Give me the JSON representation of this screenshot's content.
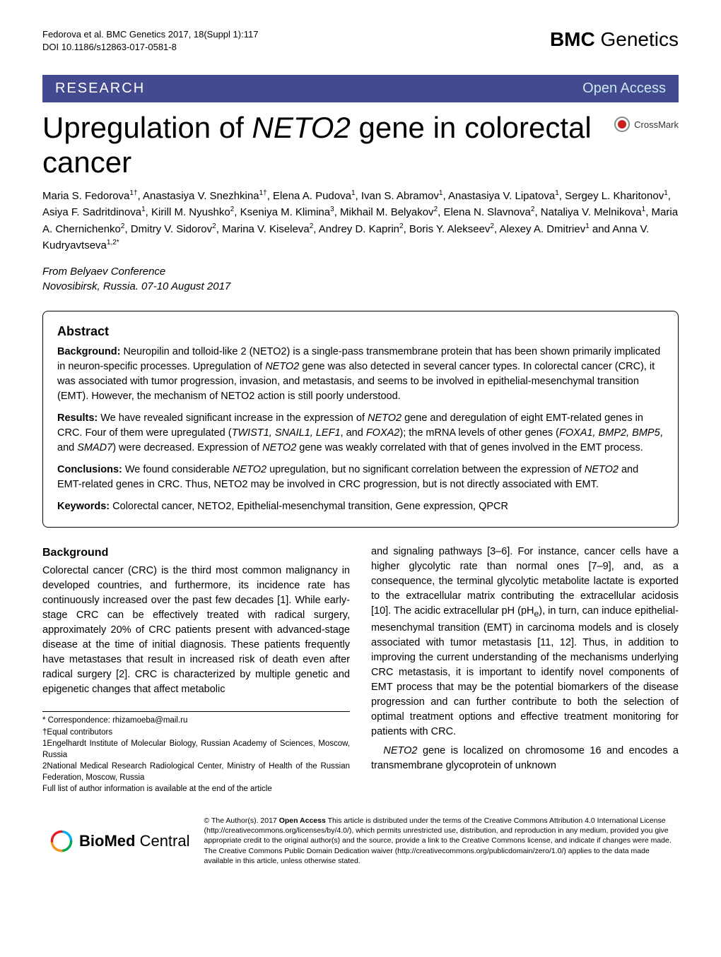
{
  "header": {
    "citation_line1": "Fedorova et al. BMC Genetics 2017, 18(Suppl 1):117",
    "citation_line2": "DOI 10.1186/s12863-017-0581-8",
    "journal_bold": "BMC",
    "journal_rest": " Genetics"
  },
  "banner": {
    "left": "RESEARCH",
    "right": "Open Access"
  },
  "title": {
    "pre": "Upregulation of ",
    "gene": "NETO2",
    "post": " gene in colorectal cancer"
  },
  "crossmark_label": "CrossMark",
  "authors_html": "Maria S. Fedorova<sup>1†</sup>, Anastasiya V. Snezhkina<sup>1†</sup>, Elena A. Pudova<sup>1</sup>, Ivan S. Abramov<sup>1</sup>, Anastasiya V. Lipatova<sup>1</sup>, Sergey L. Kharitonov<sup>1</sup>, Asiya F. Sadritdinova<sup>1</sup>, Kirill M. Nyushko<sup>2</sup>, Kseniya M. Klimina<sup>3</sup>, Mikhail M. Belyakov<sup>2</sup>, Elena N. Slavnova<sup>2</sup>, Nataliya V. Melnikova<sup>1</sup>, Maria A. Chernichenko<sup>2</sup>, Dmitry V. Sidorov<sup>2</sup>, Marina V. Kiseleva<sup>2</sup>, Andrey D. Kaprin<sup>2</sup>, Boris Y. Alekseev<sup>2</sup>, Alexey A. Dmitriev<sup>1</sup> and Anna V. Kudryavtseva<sup>1,2*</sup>",
  "conference": {
    "from": "From",
    "name": "Belyaev Conference",
    "location": "Novosibirsk, Russia. 07-10 August 2017"
  },
  "abstract": {
    "heading": "Abstract",
    "sections": [
      {
        "label": "Background:",
        "text": " Neuropilin and tolloid-like 2 (NETO2) is a single-pass transmembrane protein that has been shown primarily implicated in neuron-specific processes. Upregulation of <em>NETO2</em> gene was also detected in several cancer types. In colorectal cancer (CRC), it was associated with tumor progression, invasion, and metastasis, and seems to be involved in epithelial-mesenchymal transition (EMT). However, the mechanism of NETO2 action is still poorly understood."
      },
      {
        "label": "Results:",
        "text": " We have revealed significant increase in the expression of <em>NETO2</em> gene and deregulation of eight EMT-related genes in CRC. Four of them were upregulated (<em>TWIST1, SNAIL1, LEF1</em>, and <em>FOXA2</em>); the mRNA levels of other genes (<em>FOXA1, BMP2, BMP5</em>, and <em>SMAD7</em>) were decreased. Expression of <em>NETO2</em> gene was weakly correlated with that of genes involved in the EMT process."
      },
      {
        "label": "Conclusions:",
        "text": " We found considerable <em>NETO2</em> upregulation, but no significant correlation between the expression of <em>NETO2</em> and EMT-related genes in CRC. Thus, NETO2 may be involved in CRC progression, but is not directly associated with EMT."
      },
      {
        "label": "Keywords:",
        "text": " Colorectal cancer, NETO2, Epithelial-mesenchymal transition, Gene expression, QPCR"
      }
    ]
  },
  "body": {
    "background_heading": "Background",
    "left_paragraph": "Colorectal cancer (CRC) is the third most common malignancy in developed countries, and furthermore, its incidence rate has continuously increased over the past few decades [1]. While early-stage CRC can be effectively treated with radical surgery, approximately 20% of CRC patients present with advanced-stage disease at the time of initial diagnosis. These patients frequently have metastases that result in increased risk of death even after radical surgery [2]. CRC is characterized by multiple genetic and epigenetic changes that affect metabolic",
    "right_paragraph1": "and signaling pathways [3–6]. For instance, cancer cells have a higher glycolytic rate than normal ones [7–9], and, as a consequence, the terminal glycolytic metabolite lactate is exported to the extracellular matrix contributing the extracellular acidosis [10]. The acidic extracellular pH (pH<sub>e</sub>), in turn, can induce epithelial-mesenchymal transition (EMT) in carcinoma models and is closely associated with tumor metastasis [11, 12]. Thus, in addition to improving the current understanding of the mechanisms underlying CRC metastasis, it is important to identify novel components of EMT process that may be the potential biomarkers of the disease progression and can further contribute to both the selection of optimal treatment options and effective treatment monitoring for patients with CRC.",
    "right_paragraph2": "<em>NETO2</em> gene is localized on chromosome 16 and encodes a transmembrane glycoprotein of unknown"
  },
  "footnotes": {
    "line1": "* Correspondence: rhizamoeba@mail.ru",
    "line2": "†Equal contributors",
    "line3": "1Engelhardt Institute of Molecular Biology, Russian Academy of Sciences, Moscow, Russia",
    "line4": "2National Medical Research Radiological Center, Ministry of Health of the Russian Federation, Moscow, Russia",
    "line5": "Full list of author information is available at the end of the article"
  },
  "footer": {
    "logo_bold": "BioMed",
    "logo_rest": " Central",
    "license": "© The Author(s). 2017 <span class='oa'>Open Access</span> This article is distributed under the terms of the Creative Commons Attribution 4.0 International License (http://creativecommons.org/licenses/by/4.0/), which permits unrestricted use, distribution, and reproduction in any medium, provided you give appropriate credit to the original author(s) and the source, provide a link to the Creative Commons license, and indicate if changes were made. The Creative Commons Public Domain Dedication waiver (http://creativecommons.org/publicdomain/zero/1.0/) applies to the data made available in this article, unless otherwise stated."
  },
  "colors": {
    "banner_bg": "#434a8f",
    "banner_right": "#c8e8f0",
    "crossmark_red": "#c82021",
    "swirl_colors": [
      "#e31b23",
      "#00a94f",
      "#00aeef",
      "#f6921e"
    ]
  }
}
